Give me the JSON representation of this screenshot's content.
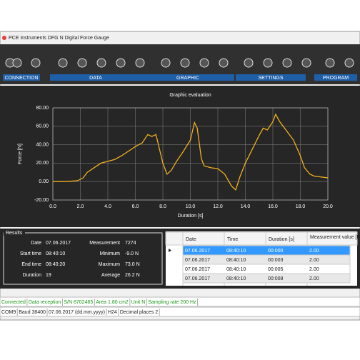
{
  "window": {
    "title": "PCE Instruments DFG N Digital Force Gauge"
  },
  "toolbar": {
    "groups": [
      "CONNECTION",
      "DATA",
      "GRAPHIC",
      "SETTINGS",
      "PROGRAM"
    ]
  },
  "chart_data": {
    "type": "line",
    "title": "Graphic evaluation",
    "x_label": "Duration [s]",
    "y_label": "Force [N]",
    "x": [
      0,
      1,
      1.8,
      2.2,
      2.5,
      3,
      3.5,
      4,
      4.5,
      5,
      5.5,
      6,
      6.5,
      6.9,
      7.2,
      7.5,
      8,
      8.3,
      8.6,
      9,
      9.5,
      10,
      10.3,
      10.5,
      10.8,
      11,
      11.5,
      12,
      12.5,
      13,
      13.3,
      13.6,
      14,
      14.5,
      15,
      15.3,
      15.6,
      16,
      16.2,
      16.5,
      17,
      17.5,
      18,
      18.3,
      18.7,
      19,
      19.5,
      20
    ],
    "values": [
      0,
      0,
      1,
      4,
      10,
      15,
      20,
      22,
      24,
      28,
      33,
      38,
      42,
      51,
      49,
      51,
      20,
      8,
      12,
      22,
      33,
      45,
      64,
      58,
      25,
      17,
      15,
      14,
      8,
      -5,
      -9,
      5,
      20,
      35,
      50,
      58,
      56,
      65,
      73,
      65,
      55,
      45,
      28,
      15,
      8,
      6,
      5,
      4
    ],
    "color": "#f2b01e",
    "xlim": [
      0,
      20
    ],
    "xticks": [
      {
        "value": 0,
        "label": "0.0"
      },
      {
        "value": 2,
        "label": "2.0"
      },
      {
        "value": 4,
        "label": "4.0"
      },
      {
        "value": 6,
        "label": "6.0"
      },
      {
        "value": 8,
        "label": "8.0"
      },
      {
        "value": 10,
        "label": "10.0"
      },
      {
        "value": 12,
        "label": "12.0"
      },
      {
        "value": 14,
        "label": "14.0"
      },
      {
        "value": 16,
        "label": "16.0"
      },
      {
        "value": 18,
        "label": "18.0"
      },
      {
        "value": 20,
        "label": "20.0"
      }
    ],
    "ylim": [
      -20,
      80
    ],
    "yticks": [
      {
        "value": -20,
        "label": "-20.00"
      },
      {
        "value": 0,
        "label": "0.00"
      },
      {
        "value": 20,
        "label": "20.00"
      },
      {
        "value": 40,
        "label": "40.00"
      },
      {
        "value": 60,
        "label": "60.00"
      },
      {
        "value": 80,
        "label": "80.00"
      }
    ],
    "grid": true
  },
  "results": {
    "title": "Results",
    "items": [
      {
        "label": "Date",
        "value": "07.06.2017"
      },
      {
        "label": "Measurement",
        "value": "7274"
      },
      {
        "label": "Start time",
        "value": "08:40:10"
      },
      {
        "label": "Minimum",
        "value": "-9.0 N"
      },
      {
        "label": "End time",
        "value": "08:40:20"
      },
      {
        "label": "Maximum",
        "value": "73.0 N"
      },
      {
        "label": "Duration",
        "value": "19"
      },
      {
        "label": "Average",
        "value": "26.2 N"
      }
    ]
  },
  "table": {
    "headers": [
      "Date",
      "Time",
      "Duration [s]",
      "Measurement value [N]"
    ],
    "rows": [
      [
        "07.06.2017",
        "08:40:10",
        "00:000",
        "2.00"
      ],
      [
        "07.06.2017",
        "08:40:10",
        "00:003",
        "2.00"
      ],
      [
        "07.06.2017",
        "08:40:10",
        "00:005",
        "2.00"
      ],
      [
        "07.06.2017",
        "08:40:10",
        "00:008",
        "2.00"
      ]
    ]
  },
  "status": {
    "top": [
      "Connected",
      "Data reception",
      "S/N 8702465",
      "Area 1.80 cm2",
      "Unit N",
      "Sampling rate 200 Hz"
    ],
    "bottom": [
      "COM9",
      "Baud 38400",
      "07.06.2017 (dd.mm.yyyy)",
      "H24",
      "Decimal places 2"
    ]
  }
}
